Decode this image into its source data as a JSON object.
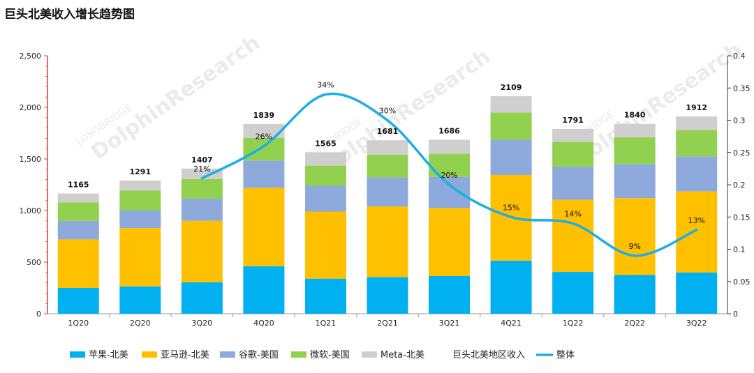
{
  "title": "巨头北美收入增长趋势图",
  "chart_data": {
    "type": "bar",
    "stacked": true,
    "categories": [
      "1Q20",
      "2Q20",
      "3Q20",
      "4Q20",
      "1Q21",
      "2Q21",
      "3Q21",
      "4Q21",
      "1Q22",
      "2Q22",
      "3Q22"
    ],
    "series": [
      {
        "name": "苹果-北美",
        "color": "#00B0F0",
        "values": [
          250,
          265,
          305,
          460,
          340,
          355,
          365,
          515,
          405,
          375,
          400
        ]
      },
      {
        "name": "亚马逊-北美",
        "color": "#FFC000",
        "values": [
          470,
          565,
          595,
          760,
          650,
          685,
          660,
          830,
          700,
          745,
          785
        ]
      },
      {
        "name": "谷歌-美国",
        "color": "#8EA9DB",
        "values": [
          180,
          170,
          215,
          265,
          250,
          280,
          300,
          340,
          320,
          330,
          340
        ]
      },
      {
        "name": "微软-美国",
        "color": "#92D050",
        "values": [
          180,
          195,
          190,
          220,
          195,
          220,
          225,
          265,
          240,
          260,
          255
        ]
      },
      {
        "name": "Meta-北美",
        "color": "#D0CECE",
        "values": [
          85,
          96,
          102,
          134,
          130,
          141,
          136,
          159,
          126,
          130,
          132
        ]
      }
    ],
    "totals": [
      1165,
      1291,
      1407,
      1839,
      1565,
      1681,
      1686,
      2109,
      1791,
      1840,
      1912
    ],
    "totals_label": "巨头北美地区收入",
    "line": {
      "name": "整体",
      "color": "#1AAFE6",
      "axis": "right",
      "x": [
        "3Q20",
        "4Q20",
        "1Q21",
        "2Q21",
        "3Q21",
        "4Q21",
        "1Q22",
        "2Q22",
        "3Q22"
      ],
      "values": [
        0.21,
        0.26,
        0.34,
        0.3,
        0.2,
        0.15,
        0.14,
        0.09,
        0.13
      ],
      "labels": [
        "21%",
        "26%",
        "34%",
        "30%",
        "20%",
        "15%",
        "14%",
        "9%",
        "13%"
      ]
    },
    "y_left": {
      "min": 0,
      "max": 2500,
      "ticks": [
        0,
        500,
        1000,
        1500,
        2000,
        2500
      ],
      "tick_labels": [
        "0",
        "500",
        "1,000",
        "1,500",
        "2,000",
        "2,500"
      ]
    },
    "y_right": {
      "min": 0,
      "max": 0.4,
      "ticks": [
        0,
        0.05,
        0.1,
        0.15,
        0.2,
        0.25,
        0.3,
        0.35,
        0.4
      ],
      "tick_labels": [
        "0",
        "0.05",
        "0.1",
        "0.15",
        "0.2",
        "0.25",
        "0.3",
        "0.35",
        "0.4"
      ]
    },
    "legend_position": "bottom",
    "grid": false
  },
  "watermark": {
    "brand": "DolphinResearch",
    "sub": "LONGBRIDGE"
  }
}
